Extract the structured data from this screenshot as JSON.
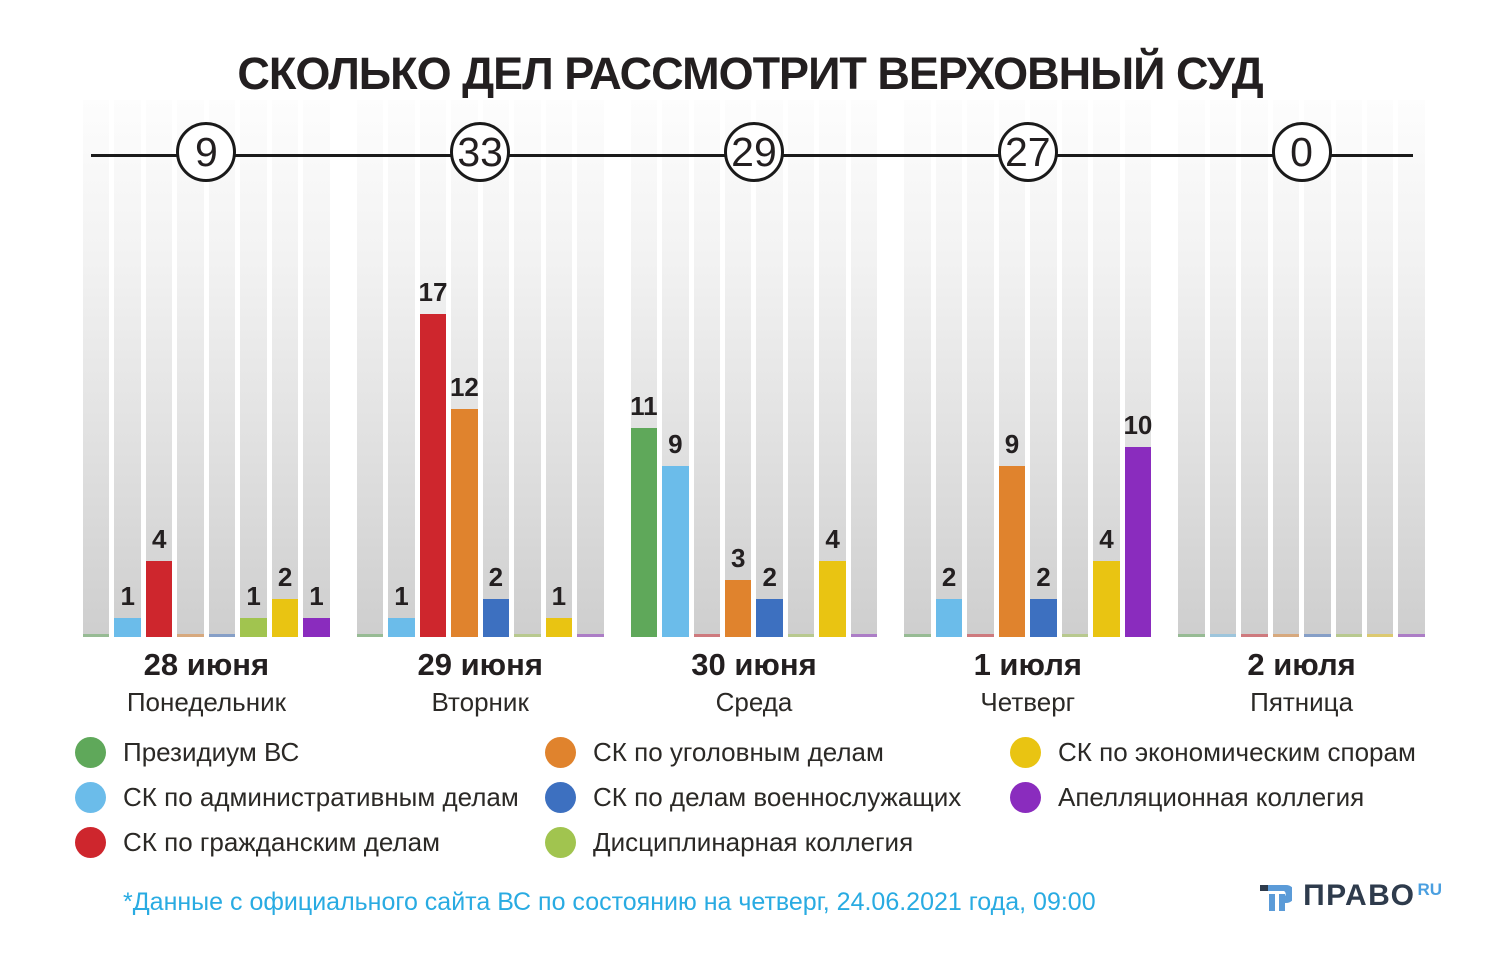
{
  "title": "СКОЛЬКО ДЕЛ РАССМОТРИТ ВЕРХОВНЫЙ СУД",
  "footnote": "*Данные с официального сайта ВС по состоянию на четверг, 24.06.2021 года, 09:00",
  "logo": {
    "brand": "ПРАВО",
    "suffix": "RU"
  },
  "colors": {
    "timeline": "#1a1a1a",
    "text_dark": "#231f20",
    "footnote_blue": "#29abe2",
    "logo_dark": "#2e3b4c",
    "logo_blue": "#4a9fe0"
  },
  "chart_data": {
    "type": "bar",
    "title": "СКОЛЬКО ДЕЛ РАССМОТРИТ ВЕРХОВНЫЙ СУД",
    "categories": [
      "Президиум ВС",
      "СК по административным делам",
      "СК по гражданским делам",
      "СК по уголовным делам",
      "СК по делам военнослужащих",
      "Дисциплинарная коллегия",
      "СК по экономическим спорам",
      "Апелляционная коллегия"
    ],
    "category_colors": [
      "#5fa85a",
      "#6bbcea",
      "#ce262d",
      "#e0832d",
      "#3d70c0",
      "#a1c44f",
      "#e9c412",
      "#8a2cbe"
    ],
    "days": [
      {
        "date": "28 июня",
        "weekday": "Понедельник",
        "total": 9,
        "values": [
          0,
          1,
          4,
          0,
          0,
          1,
          2,
          1
        ]
      },
      {
        "date": "29 июня",
        "weekday": "Вторник",
        "total": 33,
        "values": [
          0,
          1,
          17,
          12,
          2,
          0,
          1,
          0
        ]
      },
      {
        "date": "30 июня",
        "weekday": "Среда",
        "total": 29,
        "values": [
          11,
          9,
          0,
          3,
          2,
          0,
          4,
          0
        ]
      },
      {
        "date": "1 июля",
        "weekday": "Четверг",
        "total": 27,
        "values": [
          0,
          2,
          0,
          9,
          2,
          0,
          4,
          10
        ]
      },
      {
        "date": "2 июля",
        "weekday": "Пятница",
        "total": 0,
        "values": [
          0,
          0,
          0,
          0,
          0,
          0,
          0,
          0
        ]
      }
    ],
    "legend_columns": [
      [
        0,
        1,
        2
      ],
      [
        3,
        4,
        5
      ],
      [
        6,
        7
      ]
    ],
    "ylim": [
      0,
      17
    ],
    "grid": false,
    "legend_position": "bottom"
  }
}
